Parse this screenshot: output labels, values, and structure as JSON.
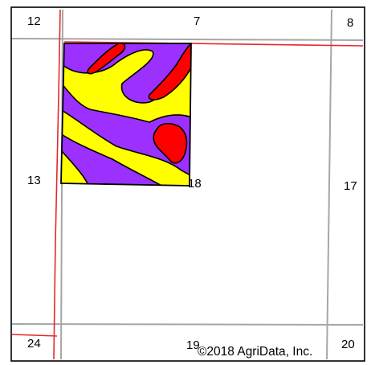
{
  "map": {
    "sections": {
      "s7": "7",
      "s8": "8",
      "s12": "12",
      "s13": "13",
      "s17": "17",
      "s18": "18",
      "s19": "19",
      "s20": "20",
      "s24": "24"
    },
    "copyright": "©2018 AgriData, Inc."
  },
  "colors": {
    "soil_purple": "#9b30ff",
    "soil_yellow": "#ffff00",
    "soil_red": "#ff0000",
    "road_gray": "#a6a6a6",
    "boundary_red": "#e8262a",
    "field_outline": "#000000"
  }
}
